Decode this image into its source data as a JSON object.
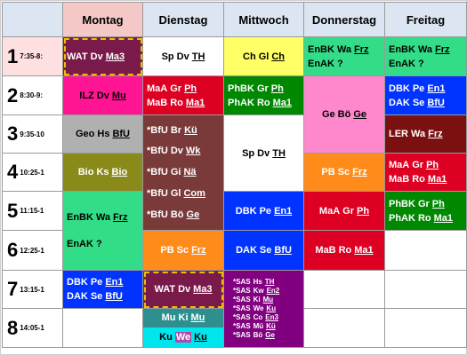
{
  "days": [
    "Montag",
    "Dienstag",
    "Mittwoch",
    "Donnerstag",
    "Freitag"
  ],
  "periods": [
    {
      "num": "1",
      "time": "7:35-8:"
    },
    {
      "num": "2",
      "time": "8:30-9:"
    },
    {
      "num": "3",
      "time": "9:35-10"
    },
    {
      "num": "4",
      "time": "10:25-1"
    },
    {
      "num": "5",
      "time": "11:15-1"
    },
    {
      "num": "6",
      "time": "12:25-1"
    },
    {
      "num": "7",
      "time": "13:15-1"
    },
    {
      "num": "8",
      "time": "14:05-1"
    }
  ],
  "mo": {
    "p1": {
      "subj": "WAT",
      "tch": "Dv",
      "room": "Ma3"
    },
    "p2": {
      "subj": "ILZ",
      "tch": "Dv",
      "room": "Mu"
    },
    "p3": {
      "subj": "Geo",
      "tch": "Hs",
      "room": "BfU"
    },
    "p4": {
      "subj": "Bio",
      "tch": "Ks",
      "room": "Bio"
    },
    "p56a": {
      "subj": "EnBK",
      "tch": "Wa",
      "room": "Frz"
    },
    "p56b": {
      "subj": "EnAK",
      "tch": "?"
    },
    "p7a": {
      "subj": "DBK",
      "tch": "Pe",
      "room": "En1"
    },
    "p7b": {
      "subj": "DAK",
      "tch": "Se",
      "room": "BfU"
    }
  },
  "di": {
    "p1": {
      "subj": "Sp",
      "tch": "Dv",
      "room": "TH"
    },
    "p2a": {
      "subj": "MaA",
      "tch": "Gr",
      "room": "Ph"
    },
    "p2b": {
      "subj": "MaB",
      "tch": "Ro",
      "room": "Ma1"
    },
    "p35": [
      {
        "subj": "*BfU",
        "tch": "Br",
        "room": "Kü"
      },
      {
        "subj": "*BfU",
        "tch": "Dv",
        "room": "Wk"
      },
      {
        "subj": "*BfU",
        "tch": "Gi",
        "room": "Nä"
      },
      {
        "subj": "*BfU",
        "tch": "Gl",
        "room": "Com"
      },
      {
        "subj": "*BfU",
        "tch": "Bö",
        "room": "Ge"
      }
    ],
    "p6": {
      "subj": "PB",
      "tch": "Sc",
      "room": "Frz"
    },
    "p7": {
      "subj": "WAT",
      "tch": "Dv",
      "room": "Ma3"
    },
    "p8a": {
      "subj": "Mu",
      "tch": "Ki",
      "room": "Mu"
    },
    "p8b": {
      "subj": "Ku",
      "tch": "We",
      "room": "Ku"
    }
  },
  "mi": {
    "p1": {
      "subj": "Ch",
      "tch": "Gl",
      "room": "Ch"
    },
    "p2a": {
      "subj": "PhBK",
      "tch": "Gr",
      "room": "Ph"
    },
    "p2b": {
      "subj": "PhAK",
      "tch": "Ro",
      "room": "Ma1"
    },
    "p34": {
      "subj": "Sp",
      "tch": "Dv",
      "room": "TH"
    },
    "p5": {
      "subj": "DBK",
      "tch": "Pe",
      "room": "En1"
    },
    "p6": {
      "subj": "DAK",
      "tch": "Se",
      "room": "BfU"
    },
    "p78": [
      {
        "subj": "*SAS",
        "tch": "Hs",
        "room": "TH"
      },
      {
        "subj": "*SAS",
        "tch": "Kw",
        "room": "En2"
      },
      {
        "subj": "*SAS",
        "tch": "Ki",
        "room": "Mu"
      },
      {
        "subj": "*SAS",
        "tch": "We",
        "room": "Ku"
      },
      {
        "subj": "*SAS",
        "tch": "Co",
        "room": "En3"
      },
      {
        "subj": "*SAS",
        "tch": "Mü",
        "room": "Kü"
      },
      {
        "subj": "*SAS",
        "tch": "Bö",
        "room": "Ge"
      }
    ]
  },
  "do": {
    "p1a": {
      "subj": "EnBK",
      "tch": "Wa",
      "room": "Frz"
    },
    "p1b": {
      "subj": "EnAK",
      "tch": "?"
    },
    "p23": {
      "subj": "Ge",
      "tch": "Bö",
      "room": "Ge"
    },
    "p4": {
      "subj": "PB",
      "tch": "Sc",
      "room": "Frz"
    },
    "p5": {
      "subj": "MaA",
      "tch": "Gr",
      "room": "Ph"
    },
    "p6": {
      "subj": "MaB",
      "tch": "Ro",
      "room": "Ma1"
    }
  },
  "fr": {
    "p1a": {
      "subj": "EnBK",
      "tch": "Wa",
      "room": "Frz"
    },
    "p1b": {
      "subj": "EnAK",
      "tch": "?"
    },
    "p2a": {
      "subj": "DBK",
      "tch": "Pe",
      "room": "En1"
    },
    "p2b": {
      "subj": "DAK",
      "tch": "Se",
      "room": "BfU"
    },
    "p3": {
      "subj": "LER",
      "tch": "Wa",
      "room": "Frz"
    },
    "p4a": {
      "subj": "MaA",
      "tch": "Gr",
      "room": "Ph"
    },
    "p4b": {
      "subj": "MaB",
      "tch": "Ro",
      "room": "Ma1"
    },
    "p5a": {
      "subj": "PhBK",
      "tch": "Gr",
      "room": "Ph"
    },
    "p5b": {
      "subj": "PhAK",
      "tch": "Ro",
      "room": "Ma1"
    }
  },
  "colors": {
    "monday_header": "#f5c8c8",
    "header": "#dce6f2",
    "wat": "#7a1a4a",
    "ilz": "#ff1493",
    "geo": "#b0b0b0",
    "bio": "#8a8a1a",
    "green": "#33dd88",
    "blue": "#0033ff",
    "white": "#ffffff",
    "red": "#dd0022",
    "bfu": "#7a3a3a",
    "orange": "#ff8c1a",
    "muki": "#2f8f8f",
    "cyan": "#00e5ee",
    "yellow": "#ffff66",
    "darkgreen": "#008800",
    "sas": "#800080",
    "pink": "#ff88cc",
    "ler": "#7a1010"
  }
}
